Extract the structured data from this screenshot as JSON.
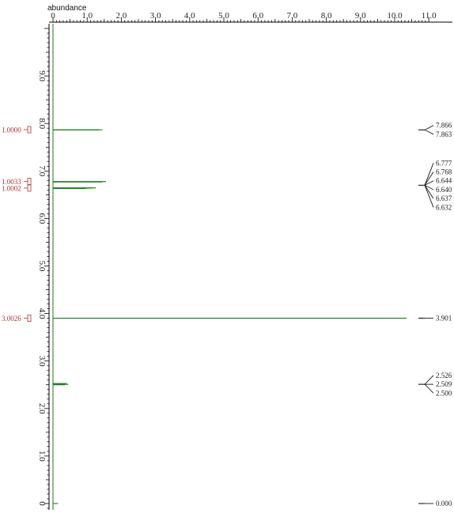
{
  "chart_data": {
    "type": "line",
    "x_axis": {
      "label": "abundance",
      "range": [
        0,
        11.0
      ],
      "ticks": [
        "0",
        "1.0",
        "2.0",
        "3.0",
        "4.0",
        "5.0",
        "6.0",
        "7.0",
        "8.0",
        "9.0",
        "10.0",
        "11.0"
      ]
    },
    "y_axis": {
      "label": "",
      "range": [
        -0.1,
        10.0
      ],
      "ticks": [
        "0",
        "1.0",
        "2.0",
        "3.0",
        "4.0",
        "5.0",
        "6.0",
        "7.0",
        "8.0",
        "9.0"
      ]
    },
    "series": [
      {
        "peaks": [
          {
            "shift": 7.866,
            "abundance": 1.45
          },
          {
            "shift": 7.863,
            "abundance": 1.35
          },
          {
            "shift": 6.777,
            "abundance": 1.55
          },
          {
            "shift": 6.768,
            "abundance": 1.45
          },
          {
            "shift": 6.644,
            "abundance": 1.25
          },
          {
            "shift": 6.64,
            "abundance": 1.15
          },
          {
            "shift": 6.637,
            "abundance": 1.05
          },
          {
            "shift": 6.632,
            "abundance": 0.95
          },
          {
            "shift": 3.901,
            "abundance": 10.35
          },
          {
            "shift": 2.526,
            "abundance": 0.4
          },
          {
            "shift": 2.509,
            "abundance": 0.45
          },
          {
            "shift": 2.5,
            "abundance": 0.35
          },
          {
            "shift": 0.0,
            "abundance": 0.15
          }
        ]
      }
    ],
    "integrals": [
      {
        "value": "1.0000",
        "shift": 7.87
      },
      {
        "value": "1.0033",
        "shift": 6.78
      },
      {
        "value": "1.0002",
        "shift": 6.64
      },
      {
        "value": "3.0026",
        "shift": 3.9
      }
    ],
    "peak_label_groups": [
      {
        "labels": [
          "7.866",
          "7.863"
        ],
        "shift": 7.865
      },
      {
        "labels": [
          "6.777",
          "6.768",
          "6.644",
          "6.640",
          "6.637",
          "6.632"
        ],
        "shift": 6.7
      },
      {
        "labels": [
          "3.901"
        ],
        "shift": 3.901
      },
      {
        "labels": [
          "2.526",
          "2.509",
          "2.500"
        ],
        "shift": 2.51
      },
      {
        "labels": [
          "0.000"
        ],
        "shift": 0.0
      }
    ],
    "grid": false,
    "colors": {
      "spectrum": "#1a7a1a",
      "integral": "#b03030",
      "axis": "#000000",
      "labels": "#222222"
    }
  }
}
